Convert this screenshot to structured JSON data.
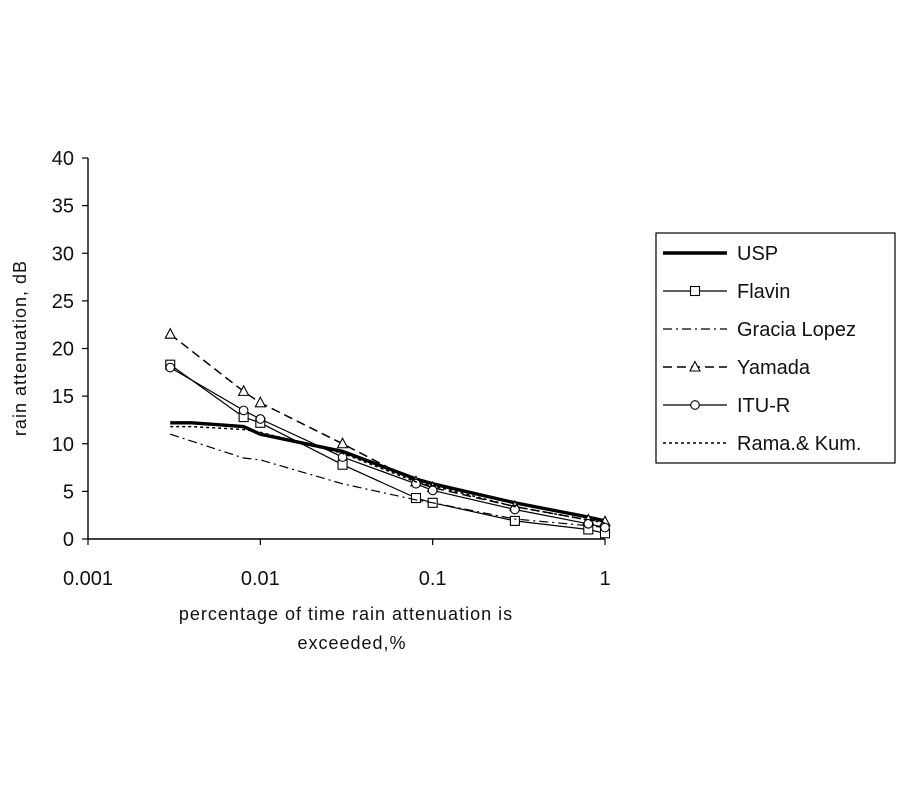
{
  "chart_data": {
    "type": "line",
    "title": "",
    "xlabel_line1": "percentage of time rain attenuation is",
    "xlabel_line2": "exceeded,%",
    "ylabel": "rain attenuation, dB",
    "x_scale": "log",
    "xlim": [
      0.001,
      1
    ],
    "ylim": [
      0,
      40
    ],
    "x_ticks": [
      0.001,
      0.01,
      0.1,
      1
    ],
    "x_tick_labels": [
      "0.001",
      "0.01",
      "0.1",
      "1"
    ],
    "y_ticks": [
      0,
      5,
      10,
      15,
      20,
      25,
      30,
      35,
      40
    ],
    "y_tick_labels": [
      "0",
      "5",
      "10",
      "15",
      "20",
      "25",
      "30",
      "35",
      "40"
    ],
    "grid": false,
    "legend_position": "right",
    "series": [
      {
        "name": "USP",
        "style": "thick-solid",
        "marker": "none",
        "x": [
          0.003,
          0.004,
          0.008,
          0.01,
          0.03,
          0.08,
          0.1,
          0.3,
          0.8,
          1
        ],
        "y": [
          12.2,
          12.2,
          11.8,
          11.0,
          9.2,
          6.3,
          5.8,
          3.8,
          2.3,
          1.9
        ]
      },
      {
        "name": "Flavin",
        "style": "solid",
        "marker": "square",
        "x": [
          0.003,
          0.008,
          0.01,
          0.03,
          0.08,
          0.1,
          0.3,
          0.8,
          1
        ],
        "y": [
          18.3,
          12.8,
          12.2,
          7.8,
          4.3,
          3.8,
          1.9,
          1.0,
          0.6
        ]
      },
      {
        "name": "Gracia Lopez",
        "style": "dash-dot",
        "marker": "none",
        "x": [
          0.003,
          0.008,
          0.01,
          0.03,
          0.08,
          0.1,
          0.3,
          0.8,
          1
        ],
        "y": [
          11.0,
          8.5,
          8.3,
          5.8,
          4.1,
          3.8,
          2.1,
          1.4,
          1.2
        ]
      },
      {
        "name": "Yamada",
        "style": "dashed",
        "marker": "triangle",
        "x": [
          0.003,
          0.008,
          0.01,
          0.03,
          0.08,
          0.1,
          0.3,
          0.8,
          1
        ],
        "y": [
          21.5,
          15.5,
          14.3,
          10.0,
          6.0,
          5.4,
          3.4,
          2.0,
          1.8
        ]
      },
      {
        "name": "ITU-R",
        "style": "solid",
        "marker": "circle",
        "x": [
          0.003,
          0.008,
          0.01,
          0.03,
          0.08,
          0.1,
          0.3,
          0.8,
          1
        ],
        "y": [
          18.0,
          13.5,
          12.6,
          8.6,
          5.8,
          5.1,
          3.1,
          1.6,
          1.2
        ]
      },
      {
        "name": "Rama.& Kum.",
        "style": "dotted",
        "marker": "none",
        "x": [
          0.003,
          0.004,
          0.008,
          0.01,
          0.03,
          0.08,
          0.1,
          0.3,
          0.8,
          1
        ],
        "y": [
          11.8,
          11.8,
          11.5,
          11.2,
          9.0,
          6.0,
          5.6,
          3.4,
          2.0,
          1.7
        ]
      }
    ]
  }
}
